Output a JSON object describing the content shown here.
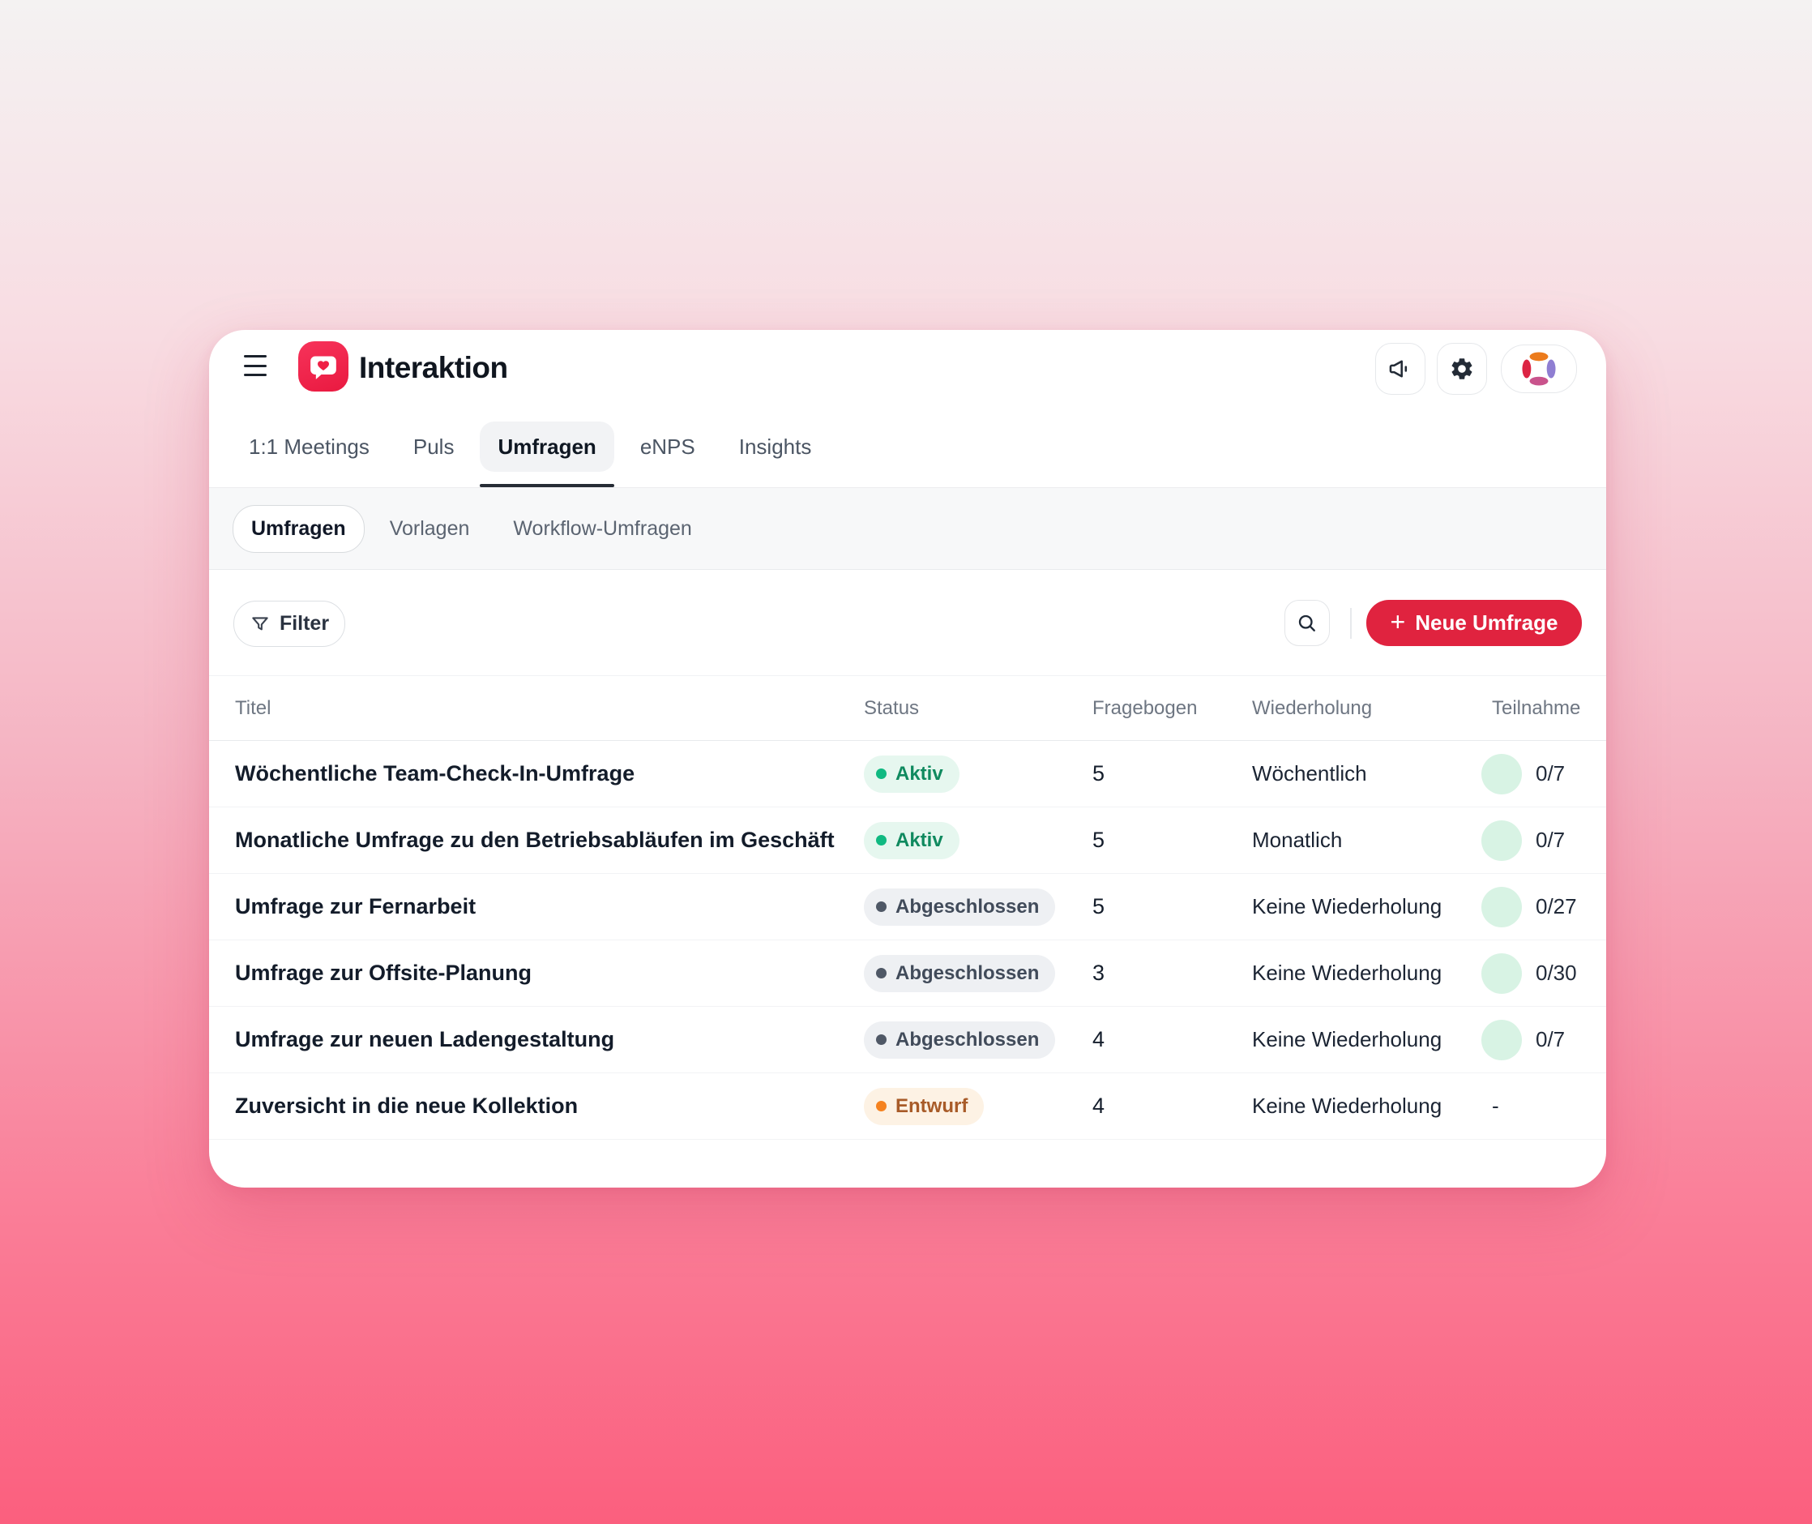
{
  "app": {
    "title": "Interaktion"
  },
  "header": {
    "actions": [
      {
        "name": "announcements",
        "icon": "megaphone-icon"
      },
      {
        "name": "settings",
        "icon": "gear-icon"
      },
      {
        "name": "account",
        "icon": "avatar-aperture-logo"
      }
    ]
  },
  "tabs": {
    "items": [
      {
        "label": "1:1 Meetings",
        "active": false
      },
      {
        "label": "Puls",
        "active": false
      },
      {
        "label": "Umfragen",
        "active": true
      },
      {
        "label": "eNPS",
        "active": false
      },
      {
        "label": "Insights",
        "active": false
      }
    ]
  },
  "subtabs": {
    "items": [
      {
        "label": "Umfragen",
        "active": true
      },
      {
        "label": "Vorlagen",
        "active": false
      },
      {
        "label": "Workflow-Umfragen",
        "active": false
      }
    ]
  },
  "toolbar": {
    "filter_label": "Filter",
    "filter_icon": "funnel-icon",
    "search_icon": "magnifier-icon",
    "plus_glyph": "+",
    "new_survey_label": "Neue Umfrage"
  },
  "table": {
    "columns": [
      "Titel",
      "Status",
      "Fragebogen",
      "Wiederholung",
      "Teilnahme"
    ],
    "status_styles": {
      "active": {
        "bg": "#e6f7ef",
        "dot": "#10b981",
        "text": "#0f8a5f"
      },
      "completed": {
        "bg": "#eef0f3",
        "dot": "#4f5866",
        "text": "#414b5a"
      },
      "draft": {
        "bg": "#fdf2e4",
        "dot": "#f5821f",
        "text": "#a85b28"
      }
    },
    "participation_ring_color": "#d8f3e4",
    "rows": [
      {
        "title": "Wöchentliche Team-Check-In-Umfrage",
        "status": {
          "label": "Aktiv",
          "type": "active"
        },
        "fragebogen": "5",
        "wiederholung": "Wöchentlich",
        "teilnahme": "0/7"
      },
      {
        "title": "Monatliche Umfrage zu den Betriebsabläufen im Geschäft",
        "status": {
          "label": "Aktiv",
          "type": "active"
        },
        "fragebogen": "5",
        "wiederholung": "Monatlich",
        "teilnahme": "0/7"
      },
      {
        "title": "Umfrage zur Fernarbeit",
        "status": {
          "label": "Abgeschlossen",
          "type": "completed"
        },
        "fragebogen": "5",
        "wiederholung": "Keine Wiederholung",
        "teilnahme": "0/27"
      },
      {
        "title": "Umfrage zur Offsite-Planung",
        "status": {
          "label": "Abgeschlossen",
          "type": "completed"
        },
        "fragebogen": "3",
        "wiederholung": "Keine Wiederholung",
        "teilnahme": "0/30"
      },
      {
        "title": "Umfrage zur neuen Ladengestaltung",
        "status": {
          "label": "Abgeschlossen",
          "type": "completed"
        },
        "fragebogen": "4",
        "wiederholung": "Keine Wiederholung",
        "teilnahme": "0/7"
      },
      {
        "title": "Zuversicht in die neue Kollektion",
        "status": {
          "label": "Entwurf",
          "type": "draft"
        },
        "fragebogen": "4",
        "wiederholung": "Keine Wiederholung",
        "teilnahme": "-"
      }
    ]
  },
  "colors": {
    "accent_red": "#e0233f",
    "logo_red": "#f7335a",
    "background_top": "#f4f2f2",
    "background_bottom": "#fb5f7e"
  }
}
